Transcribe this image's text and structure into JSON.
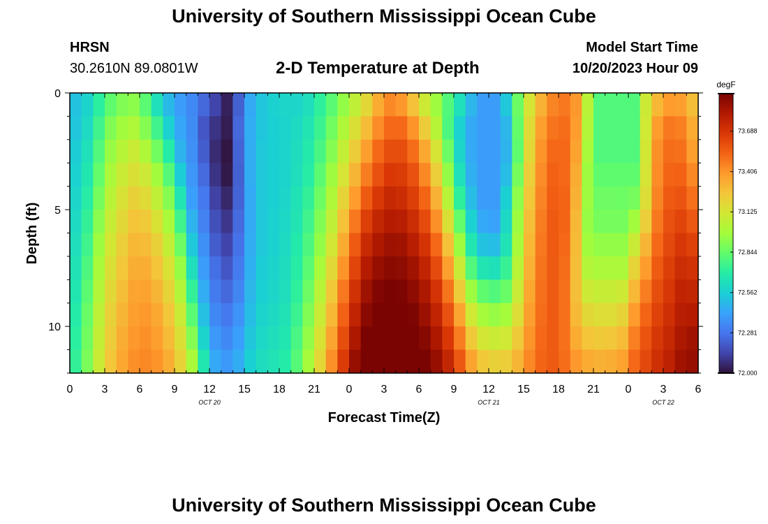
{
  "header": {
    "title": "University of Southern Mississippi Ocean Cube",
    "station": "HRSN",
    "coordinates": "30.2610N  89.0801W",
    "subtitle": "2-D Temperature at Depth",
    "model_label": "Model Start Time",
    "model_time": "10/20/2023 Hour 09"
  },
  "footer": {
    "title": "University of Southern Mississippi Ocean Cube"
  },
  "chart_data": {
    "type": "heatmap",
    "title": "2-D Temperature at Depth",
    "xlabel": "Forecast Time(Z)",
    "ylabel": "Depth (ft)",
    "x_hours_range": [
      0,
      54
    ],
    "y_range": [
      0,
      12
    ],
    "y_inverted": true,
    "x_ticks": [
      {
        "hour": 0,
        "label": "0"
      },
      {
        "hour": 3,
        "label": "3"
      },
      {
        "hour": 6,
        "label": "6"
      },
      {
        "hour": 9,
        "label": "9"
      },
      {
        "hour": 12,
        "label": "12"
      },
      {
        "hour": 15,
        "label": "15"
      },
      {
        "hour": 18,
        "label": "18"
      },
      {
        "hour": 21,
        "label": "21"
      },
      {
        "hour": 24,
        "label": "0"
      },
      {
        "hour": 27,
        "label": "3"
      },
      {
        "hour": 30,
        "label": "6"
      },
      {
        "hour": 33,
        "label": "9"
      },
      {
        "hour": 36,
        "label": "12"
      },
      {
        "hour": 39,
        "label": "15"
      },
      {
        "hour": 42,
        "label": "18"
      },
      {
        "hour": 45,
        "label": "21"
      },
      {
        "hour": 48,
        "label": "0"
      },
      {
        "hour": 51,
        "label": "3"
      },
      {
        "hour": 54,
        "label": "6"
      }
    ],
    "date_labels": [
      {
        "hour": 12,
        "label": "OCT 20"
      },
      {
        "hour": 36,
        "label": "OCT 21"
      },
      {
        "hour": 51,
        "label": "OCT 22"
      }
    ],
    "y_ticks": [
      {
        "depth": 0,
        "label": "0"
      },
      {
        "depth": 5,
        "label": "5"
      },
      {
        "depth": 10,
        "label": "10"
      }
    ],
    "colorbar": {
      "unit": "degF",
      "min": 72.0,
      "max": 73.95,
      "ticks": [
        "72.000",
        "72.281",
        "72.562",
        "72.844",
        "73.125",
        "73.406",
        "73.688"
      ],
      "colors": [
        "#30123b",
        "#4145ab",
        "#4675ed",
        "#39a2fc",
        "#1bcfd4",
        "#24eca6",
        "#61fc6c",
        "#a4fc3b",
        "#d1e834",
        "#f3c63a",
        "#fe9b2d",
        "#f36315",
        "#d93806",
        "#b11901",
        "#7a0402"
      ]
    },
    "depth_rows": [
      0,
      1,
      2,
      3,
      4,
      5,
      6,
      7,
      8,
      9,
      10,
      11
    ],
    "time_columns": [
      0,
      1,
      2,
      3,
      4,
      5,
      6,
      7,
      8,
      9,
      10,
      11,
      12,
      13,
      14,
      15,
      16,
      17,
      18,
      19,
      20,
      21,
      22,
      23,
      24,
      25,
      26,
      27,
      28,
      29,
      30,
      31,
      32,
      33,
      34,
      35,
      36,
      37,
      38,
      39,
      40,
      41,
      42,
      43,
      44,
      45,
      46,
      47,
      48,
      49,
      50,
      51,
      52,
      53
    ],
    "values_degF": [
      [
        72.52,
        72.58,
        72.71,
        72.83,
        72.9,
        72.93,
        72.82,
        72.64,
        72.49,
        72.4,
        72.34,
        72.24,
        72.14,
        72.04,
        72.22,
        72.44,
        72.53,
        72.57,
        72.59,
        72.59,
        72.63,
        72.72,
        72.82,
        72.94,
        73.06,
        73.19,
        73.34,
        73.44,
        73.4,
        73.27,
        73.1,
        72.96,
        72.8,
        72.64,
        72.48,
        72.4,
        72.4,
        72.54,
        72.86,
        73.13,
        73.32,
        73.45,
        73.48,
        73.4,
        73.04,
        72.8,
        72.8,
        72.8,
        72.8,
        73.1,
        73.3,
        73.39,
        73.38,
        73.28
      ],
      [
        72.53,
        72.61,
        72.76,
        72.9,
        72.97,
        73.01,
        72.91,
        72.76,
        72.57,
        72.43,
        72.35,
        72.19,
        72.09,
        72.03,
        72.24,
        72.45,
        72.53,
        72.56,
        72.58,
        72.61,
        72.66,
        72.75,
        72.87,
        73.01,
        73.15,
        73.29,
        73.43,
        73.52,
        73.52,
        73.41,
        73.23,
        73.03,
        72.79,
        72.57,
        72.44,
        72.4,
        72.4,
        72.48,
        72.84,
        73.17,
        73.38,
        73.49,
        73.51,
        73.39,
        73.02,
        72.8,
        72.8,
        72.8,
        72.8,
        73.11,
        73.39,
        73.48,
        73.46,
        73.34
      ],
      [
        72.55,
        72.64,
        72.8,
        72.95,
        73.03,
        73.09,
        73.01,
        72.87,
        72.69,
        72.47,
        72.36,
        72.21,
        72.07,
        72.01,
        72.23,
        72.45,
        72.54,
        72.56,
        72.58,
        72.62,
        72.68,
        72.78,
        72.91,
        73.07,
        73.23,
        73.38,
        73.52,
        73.6,
        73.6,
        73.51,
        73.35,
        73.13,
        72.86,
        72.59,
        72.44,
        72.4,
        72.4,
        72.47,
        72.83,
        73.19,
        73.41,
        73.52,
        73.52,
        73.37,
        72.99,
        72.8,
        72.8,
        72.8,
        72.8,
        73.12,
        73.42,
        73.51,
        73.5,
        73.38
      ],
      [
        72.57,
        72.67,
        72.84,
        73.0,
        73.09,
        73.15,
        73.1,
        72.97,
        72.81,
        72.55,
        72.38,
        72.25,
        72.09,
        72.02,
        72.22,
        72.45,
        72.54,
        72.56,
        72.58,
        72.63,
        72.7,
        72.82,
        72.96,
        73.13,
        73.31,
        73.47,
        73.59,
        73.67,
        73.66,
        73.59,
        73.44,
        73.22,
        72.94,
        72.64,
        72.46,
        72.4,
        72.4,
        72.5,
        72.88,
        73.22,
        73.43,
        73.54,
        73.52,
        73.34,
        72.96,
        72.83,
        72.83,
        72.83,
        72.83,
        73.13,
        73.43,
        73.53,
        73.54,
        73.44
      ],
      [
        72.59,
        72.7,
        72.88,
        73.04,
        73.14,
        73.21,
        73.17,
        73.06,
        72.91,
        72.66,
        72.41,
        72.29,
        72.13,
        72.06,
        72.23,
        72.44,
        72.54,
        72.56,
        72.59,
        72.65,
        72.73,
        72.86,
        73.01,
        73.2,
        73.39,
        73.56,
        73.67,
        73.74,
        73.72,
        73.65,
        73.53,
        73.32,
        73.04,
        72.72,
        72.5,
        72.4,
        72.4,
        72.56,
        72.93,
        73.25,
        73.45,
        73.55,
        73.53,
        73.32,
        72.96,
        72.86,
        72.86,
        72.86,
        72.88,
        73.16,
        73.45,
        73.56,
        73.58,
        73.5
      ],
      [
        72.61,
        72.73,
        72.92,
        73.08,
        73.18,
        73.26,
        73.24,
        73.14,
        72.99,
        72.76,
        72.47,
        72.32,
        72.17,
        72.1,
        72.25,
        72.44,
        72.54,
        72.57,
        72.6,
        72.66,
        72.76,
        72.9,
        73.06,
        73.27,
        73.48,
        73.65,
        73.75,
        73.8,
        73.79,
        73.72,
        73.61,
        73.42,
        73.15,
        72.84,
        72.57,
        72.44,
        72.42,
        72.6,
        72.96,
        73.28,
        73.47,
        73.56,
        73.53,
        73.3,
        72.95,
        72.88,
        72.88,
        72.88,
        72.97,
        73.22,
        73.48,
        73.59,
        73.63,
        73.57
      ],
      [
        72.63,
        72.76,
        72.96,
        73.12,
        73.22,
        73.3,
        73.29,
        73.21,
        73.07,
        72.86,
        72.54,
        72.36,
        72.21,
        72.14,
        72.27,
        72.45,
        72.54,
        72.57,
        72.61,
        72.68,
        72.79,
        72.94,
        73.12,
        73.34,
        73.56,
        73.73,
        73.82,
        73.86,
        73.85,
        73.79,
        73.69,
        73.52,
        73.27,
        72.96,
        72.67,
        72.52,
        72.5,
        72.65,
        72.99,
        73.3,
        73.48,
        73.56,
        73.52,
        73.29,
        72.97,
        72.94,
        72.94,
        72.94,
        73.09,
        73.31,
        73.52,
        73.62,
        73.68,
        73.64
      ],
      [
        72.65,
        72.79,
        72.99,
        73.15,
        73.25,
        73.33,
        73.33,
        73.26,
        73.14,
        72.95,
        72.63,
        72.4,
        72.26,
        72.19,
        72.3,
        72.46,
        72.55,
        72.58,
        72.62,
        72.7,
        72.82,
        72.99,
        73.18,
        73.41,
        73.63,
        73.8,
        73.88,
        73.91,
        73.9,
        73.85,
        73.76,
        73.61,
        73.38,
        73.09,
        72.8,
        72.66,
        72.64,
        72.74,
        73.04,
        73.32,
        73.49,
        73.56,
        73.51,
        73.28,
        73.02,
        73.0,
        73.0,
        73.0,
        73.2,
        73.39,
        73.56,
        73.65,
        73.72,
        73.7
      ],
      [
        72.67,
        72.82,
        73.02,
        73.18,
        73.28,
        73.36,
        73.37,
        73.31,
        73.2,
        73.02,
        72.73,
        72.45,
        72.3,
        72.24,
        72.33,
        72.48,
        72.56,
        72.59,
        72.63,
        72.72,
        72.86,
        73.04,
        73.24,
        73.48,
        73.7,
        73.86,
        73.93,
        73.95,
        73.94,
        73.9,
        73.82,
        73.69,
        73.49,
        73.23,
        72.96,
        72.83,
        72.8,
        72.85,
        73.09,
        73.35,
        73.5,
        73.56,
        73.5,
        73.28,
        73.1,
        73.08,
        73.08,
        73.1,
        73.3,
        73.47,
        73.6,
        73.68,
        73.76,
        73.75
      ],
      [
        72.69,
        72.85,
        73.05,
        73.21,
        73.31,
        73.38,
        73.4,
        73.35,
        73.25,
        73.09,
        72.82,
        72.51,
        72.34,
        72.29,
        72.37,
        72.5,
        72.58,
        72.61,
        72.65,
        72.75,
        72.9,
        73.09,
        73.3,
        73.54,
        73.76,
        73.91,
        73.97,
        73.98,
        73.97,
        73.94,
        73.87,
        73.76,
        73.59,
        73.36,
        73.11,
        72.98,
        72.95,
        72.98,
        73.16,
        73.38,
        73.51,
        73.56,
        73.5,
        73.3,
        73.18,
        73.16,
        73.16,
        73.2,
        73.39,
        73.53,
        73.64,
        73.71,
        73.79,
        73.8
      ],
      [
        72.71,
        72.87,
        73.07,
        73.23,
        73.33,
        73.4,
        73.42,
        73.38,
        73.29,
        73.15,
        72.91,
        72.58,
        72.39,
        72.34,
        72.41,
        72.53,
        72.6,
        72.63,
        72.67,
        72.78,
        72.94,
        73.14,
        73.36,
        73.6,
        73.82,
        73.95,
        73.99,
        74.0,
        73.99,
        73.97,
        73.92,
        73.82,
        73.67,
        73.47,
        73.24,
        73.12,
        73.09,
        73.11,
        73.24,
        73.41,
        73.52,
        73.56,
        73.5,
        73.34,
        73.26,
        73.24,
        73.25,
        73.29,
        73.46,
        73.58,
        73.68,
        73.74,
        73.82,
        73.85
      ],
      [
        72.73,
        72.89,
        73.09,
        73.25,
        73.35,
        73.42,
        73.44,
        73.41,
        73.33,
        73.2,
        72.99,
        72.67,
        72.44,
        72.39,
        72.45,
        72.56,
        72.62,
        72.65,
        72.69,
        72.81,
        72.98,
        73.19,
        73.42,
        73.66,
        73.88,
        73.98,
        74.0,
        74.0,
        74.0,
        73.99,
        73.95,
        73.88,
        73.75,
        73.57,
        73.36,
        73.24,
        73.21,
        73.22,
        73.31,
        73.44,
        73.53,
        73.56,
        73.51,
        73.4,
        73.34,
        73.32,
        73.33,
        73.37,
        73.52,
        73.62,
        73.71,
        73.77,
        73.85,
        73.88
      ]
    ]
  }
}
